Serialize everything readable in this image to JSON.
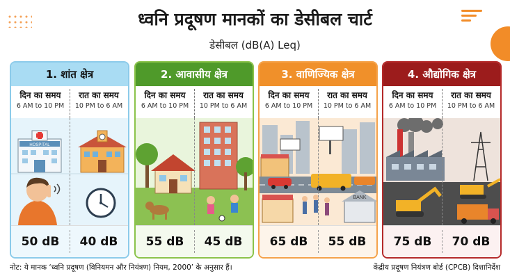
{
  "header": {
    "title": "ध्वनि प्रदूषण मानकों का डेसीबल चार्ट",
    "subtitle": "डेसीबल (dB(A) Leq)"
  },
  "zones": [
    {
      "name": "1. शांत क्षेत्र",
      "day_label": "दिन का समय",
      "day_hours": "6 AM to 10 PM",
      "night_label": "रात का समय",
      "night_hours": "10 PM to 6 AM",
      "day_value": "50 dB",
      "night_value": "40 dB",
      "accent": "#a9dcf3",
      "scene_text": "HOSPITAL"
    },
    {
      "name": "2. आवासीय क्षेत्र",
      "day_label": "दिन का समय",
      "day_hours": "6 AM to 10 PM",
      "night_label": "रात का समय",
      "night_hours": "10 PM to 6 AM",
      "day_value": "55 dB",
      "night_value": "45 dB",
      "accent": "#4f9a2a"
    },
    {
      "name": "3. वाणिज्यिक क्षेत्र",
      "day_label": "दिन का समय",
      "day_hours": "6 AM to 10 PM",
      "night_label": "रात का समय",
      "night_hours": "10 PM to 6 AM",
      "day_value": "65 dB",
      "night_value": "55 dB",
      "accent": "#f0902a",
      "scene_text": "BANK"
    },
    {
      "name": "4. औद्योगिक क्षेत्र",
      "day_label": "दिन का समय",
      "day_hours": "6 AM to 10 PM",
      "night_label": "रात का समय",
      "night_hours": "10 PM to 6 AM",
      "day_value": "75 dB",
      "night_value": "70 dB",
      "accent": "#9c1c1c"
    }
  ],
  "footer": {
    "note": "नोट: ये मानक ‘ध्वनि प्रदूषण (विनियमन और नियंत्रण) नियम, 2000’ के अनुसार हैं।",
    "source": "केंद्रीय प्रदूषण नियंत्रण बोर्ड (CPCB) दिशानिर्देश"
  }
}
